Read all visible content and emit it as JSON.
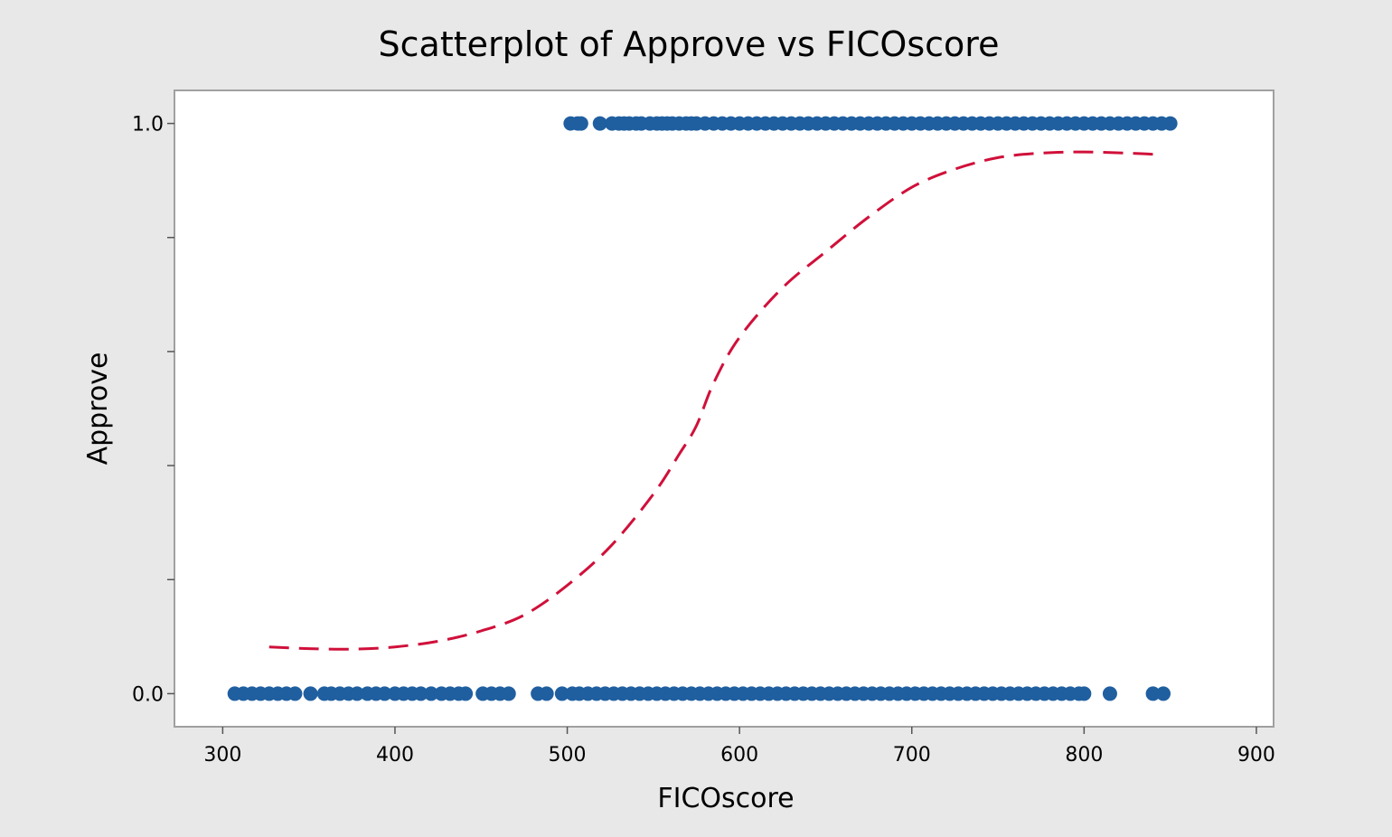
{
  "chart_data": {
    "type": "scatter",
    "title": "Scatterplot of Approve vs FICOscore",
    "xlabel": "FICOscore",
    "ylabel": "Approve",
    "xlim": [
      272,
      910
    ],
    "ylim": [
      -0.058,
      1.058
    ],
    "x_ticks": [
      300,
      400,
      500,
      600,
      700,
      800,
      900
    ],
    "x_tick_labels": [
      "300",
      "400",
      "500",
      "600",
      "700",
      "800",
      "900"
    ],
    "y_ticks": [
      0.0,
      0.2,
      0.4,
      0.6,
      0.8,
      1.0
    ],
    "y_tick_labels": [
      "0.0",
      "",
      "",
      "",
      "",
      "1.0"
    ],
    "grid": false,
    "colors": {
      "points": "#1f5fa0",
      "curve": "#d0103a",
      "background": "#e8e8e8",
      "plot_background": "#ffffff",
      "frame": "#a0a0a0"
    },
    "series": [
      {
        "kind": "points",
        "y": 1,
        "x": [
          502,
          506,
          508,
          519,
          526,
          530,
          533,
          536,
          540,
          543,
          548,
          552,
          555,
          558,
          561,
          565,
          569,
          572,
          575,
          580,
          585,
          590,
          595,
          600,
          605,
          610,
          615,
          620,
          625,
          630,
          635,
          640,
          645,
          650,
          655,
          660,
          665,
          670,
          675,
          680,
          685,
          690,
          695,
          700,
          705,
          710,
          715,
          720,
          725,
          730,
          735,
          740,
          745,
          750,
          755,
          760,
          765,
          770,
          775,
          780,
          785,
          790,
          795,
          800,
          805,
          810,
          815,
          820,
          825,
          830,
          835,
          840,
          845,
          850
        ]
      },
      {
        "kind": "points",
        "y": 0,
        "x": [
          307,
          312,
          317,
          322,
          327,
          332,
          337,
          342,
          351,
          359,
          363,
          368,
          373,
          378,
          384,
          389,
          394,
          400,
          405,
          410,
          415,
          421,
          427,
          432,
          437,
          441,
          451,
          456,
          461,
          466,
          483,
          488,
          497,
          503,
          507,
          512,
          517,
          522,
          527,
          532,
          537,
          542,
          547,
          552,
          557,
          562,
          567,
          572,
          577,
          582,
          587,
          592,
          597,
          602,
          607,
          612,
          617,
          622,
          627,
          632,
          637,
          642,
          647,
          652,
          657,
          662,
          667,
          672,
          677,
          682,
          687,
          692,
          697,
          702,
          707,
          712,
          717,
          722,
          727,
          732,
          737,
          742,
          747,
          752,
          757,
          762,
          767,
          772,
          777,
          782,
          787,
          792,
          797,
          800,
          815,
          840,
          846
        ]
      },
      {
        "kind": "fitted-curve",
        "style": "dashed",
        "x": [
          327,
          350,
          375,
          400,
          425,
          450,
          475,
          500,
          525,
          550,
          565,
          575,
          585,
          600,
          625,
          650,
          675,
          700,
          725,
          750,
          775,
          800,
          825,
          840
        ],
        "y": [
          0.082,
          0.079,
          0.078,
          0.082,
          0.092,
          0.11,
          0.138,
          0.19,
          0.258,
          0.35,
          0.42,
          0.47,
          0.545,
          0.625,
          0.712,
          0.775,
          0.836,
          0.888,
          0.92,
          0.94,
          0.948,
          0.95,
          0.948,
          0.946
        ]
      }
    ]
  }
}
